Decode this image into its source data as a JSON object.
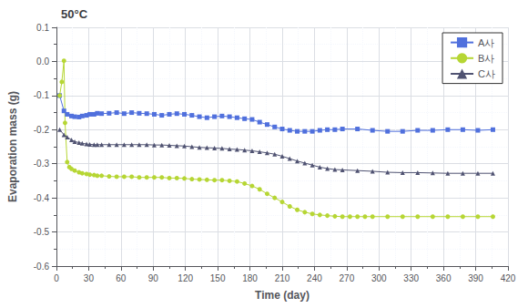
{
  "chart_data": {
    "type": "line",
    "title": "50°C",
    "xlabel": "Time (day)",
    "ylabel": "Evaporation mass (g)",
    "xlim": [
      0,
      420
    ],
    "ylim": [
      -0.6,
      0.1
    ],
    "xticks": [
      0,
      30,
      60,
      90,
      120,
      150,
      180,
      210,
      240,
      270,
      300,
      330,
      360,
      390,
      420
    ],
    "yticks": [
      -0.6,
      -0.5,
      -0.4,
      -0.3,
      -0.2,
      -0.1,
      {
        "value": 0.0,
        "label": "0.0"
      },
      0.1
    ],
    "grid": true,
    "legend": "upper right",
    "series": [
      {
        "name": "A사",
        "marker": "square",
        "x": [
          3,
          7,
          10,
          14,
          17,
          21,
          24,
          28,
          31,
          35,
          38,
          42,
          49,
          56,
          63,
          70,
          77,
          84,
          91,
          98,
          105,
          112,
          119,
          126,
          133,
          140,
          147,
          154,
          161,
          168,
          175,
          182,
          189,
          196,
          203,
          210,
          217,
          224,
          231,
          238,
          245,
          252,
          259,
          266,
          280,
          294,
          308,
          322,
          336,
          350,
          364,
          378,
          392,
          406
        ],
        "values": [
          -0.1,
          -0.145,
          -0.155,
          -0.16,
          -0.162,
          -0.163,
          -0.16,
          -0.158,
          -0.155,
          -0.155,
          -0.152,
          -0.153,
          -0.152,
          -0.15,
          -0.153,
          -0.15,
          -0.152,
          -0.153,
          -0.155,
          -0.158,
          -0.155,
          -0.153,
          -0.155,
          -0.158,
          -0.162,
          -0.165,
          -0.162,
          -0.16,
          -0.162,
          -0.165,
          -0.168,
          -0.17,
          -0.178,
          -0.185,
          -0.192,
          -0.198,
          -0.202,
          -0.205,
          -0.205,
          -0.205,
          -0.202,
          -0.2,
          -0.2,
          -0.198,
          -0.198,
          -0.202,
          -0.205,
          -0.205,
          -0.202,
          -0.202,
          -0.2,
          -0.2,
          -0.202,
          -0.2
        ]
      },
      {
        "name": "B사",
        "marker": "circle",
        "x": [
          3,
          5,
          7,
          8,
          10,
          12,
          14,
          17,
          21,
          24,
          28,
          31,
          35,
          38,
          42,
          49,
          56,
          63,
          70,
          77,
          84,
          91,
          98,
          105,
          112,
          119,
          126,
          133,
          140,
          147,
          154,
          161,
          168,
          175,
          182,
          189,
          196,
          203,
          210,
          217,
          224,
          231,
          238,
          245,
          252,
          259,
          266,
          273,
          280,
          287,
          294,
          308,
          322,
          336,
          350,
          364,
          378,
          392,
          406
        ],
        "values": [
          -0.1,
          -0.06,
          0.002,
          -0.18,
          -0.295,
          -0.31,
          -0.315,
          -0.32,
          -0.325,
          -0.328,
          -0.33,
          -0.332,
          -0.333,
          -0.335,
          -0.335,
          -0.337,
          -0.338,
          -0.338,
          -0.338,
          -0.34,
          -0.34,
          -0.34,
          -0.34,
          -0.342,
          -0.342,
          -0.343,
          -0.345,
          -0.346,
          -0.347,
          -0.348,
          -0.348,
          -0.35,
          -0.352,
          -0.358,
          -0.365,
          -0.375,
          -0.388,
          -0.4,
          -0.412,
          -0.425,
          -0.435,
          -0.442,
          -0.447,
          -0.45,
          -0.452,
          -0.454,
          -0.455,
          -0.455,
          -0.455,
          -0.455,
          -0.455,
          -0.455,
          -0.455,
          -0.455,
          -0.455,
          -0.455,
          -0.455,
          -0.455,
          -0.455
        ]
      },
      {
        "name": "C사",
        "marker": "triangle",
        "x": [
          3,
          7,
          10,
          14,
          17,
          21,
          24,
          28,
          31,
          35,
          38,
          42,
          49,
          56,
          63,
          70,
          77,
          84,
          91,
          98,
          105,
          112,
          119,
          126,
          133,
          140,
          147,
          154,
          161,
          168,
          175,
          182,
          189,
          196,
          203,
          210,
          217,
          224,
          231,
          238,
          245,
          252,
          259,
          266,
          280,
          294,
          308,
          322,
          336,
          350,
          364,
          378,
          392,
          406
        ],
        "values": [
          -0.2,
          -0.215,
          -0.222,
          -0.23,
          -0.235,
          -0.238,
          -0.24,
          -0.242,
          -0.243,
          -0.244,
          -0.244,
          -0.244,
          -0.244,
          -0.244,
          -0.244,
          -0.244,
          -0.244,
          -0.244,
          -0.245,
          -0.245,
          -0.246,
          -0.247,
          -0.248,
          -0.25,
          -0.252,
          -0.253,
          -0.254,
          -0.255,
          -0.257,
          -0.258,
          -0.26,
          -0.262,
          -0.265,
          -0.268,
          -0.272,
          -0.278,
          -0.285,
          -0.292,
          -0.298,
          -0.304,
          -0.31,
          -0.314,
          -0.317,
          -0.318,
          -0.32,
          -0.322,
          -0.325,
          -0.326,
          -0.326,
          -0.327,
          -0.328,
          -0.328,
          -0.328,
          -0.328
        ]
      }
    ]
  }
}
